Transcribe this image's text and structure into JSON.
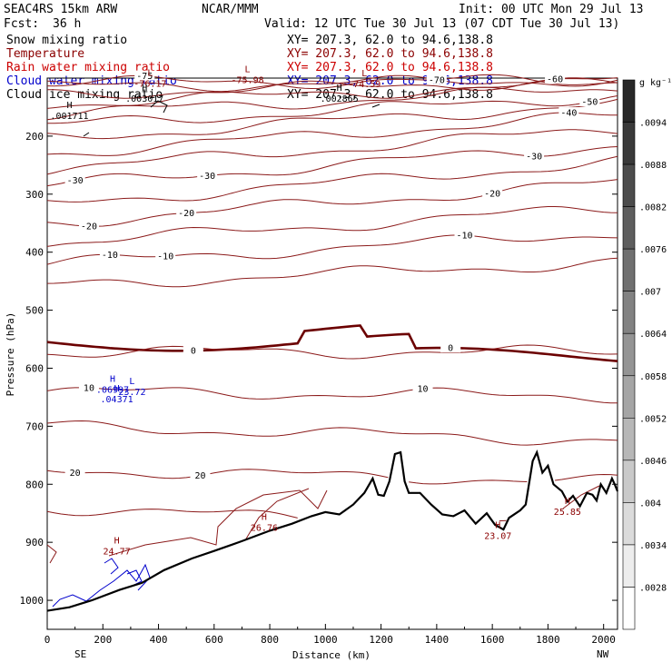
{
  "header": {
    "model": "SEAC4RS 15km ARW",
    "org": "NCAR/MMM",
    "init": "Init: 00 UTC Mon 29 Jul 13",
    "fcst_label": "Fcst:",
    "fcst_value": "36 h",
    "valid": "Valid: 12 UTC Tue 30 Jul 13 (07 CDT Tue 30 Jul 13)"
  },
  "fields": [
    {
      "name": "Snow mixing ratio",
      "xy": "XY= 207.3, 62.0 to  94.6,138.8",
      "color": "#000000"
    },
    {
      "name": "Temperature",
      "xy": "XY= 207.3, 62.0 to  94.6,138.8",
      "color": "#8b0000"
    },
    {
      "name": "Rain water mixing ratio",
      "xy": "XY= 207.3, 62.0 to  94.6,138.8",
      "color": "#cc0000"
    },
    {
      "name": "Cloud water mixing ratio",
      "xy": "XY= 207.3, 62.0 to  94.6,138.8",
      "color": "#0000cc"
    },
    {
      "name": "Cloud ice mixing ratio",
      "xy": "XY= 207.3, 62.0 to  94.6,138.8",
      "color": "#000000"
    }
  ],
  "chart_data": {
    "type": "contour-cross-section",
    "xlabel": "Distance (km)",
    "ylabel": "Pressure (hPa)",
    "xlim": [
      0,
      2050
    ],
    "ylim": [
      1050,
      100
    ],
    "x_ticks": [
      "0",
      "200",
      "400",
      "600",
      "800",
      "1000",
      "1200",
      "1400",
      "1600",
      "1800",
      "2000"
    ],
    "y_ticks": [
      "200",
      "300",
      "400",
      "500",
      "600",
      "700",
      "800",
      "900",
      "1000"
    ],
    "x_end_labels": {
      "left": "SE",
      "right": "NW"
    },
    "temperature_contour_levels": [
      -75,
      -70,
      -65,
      -60,
      -55,
      -50,
      -45,
      -40,
      -35,
      -30,
      -25,
      -20,
      -15,
      -10,
      -5,
      0,
      5,
      10,
      15,
      20,
      25
    ],
    "temperature_labels": [
      "-75",
      "-70",
      "-60",
      "-50",
      "-40",
      "-30",
      "-30",
      "-30",
      "-20",
      "-20",
      "-20",
      "-10",
      "-10",
      "-10",
      "0",
      "0",
      "10",
      "10",
      "20",
      "20"
    ],
    "extrema": [
      {
        "type": "L",
        "value": "-76.17",
        "color": "#8b0000"
      },
      {
        "type": "L",
        "value": "-75.98",
        "color": "#8b0000"
      },
      {
        "type": "L",
        "value": "-74.59",
        "color": "#8b0000"
      },
      {
        "type": "H",
        "value": ".003017",
        "color": "#000000"
      },
      {
        "type": "H",
        "value": ".002865",
        "color": "#000000"
      },
      {
        "type": "H",
        "value": ".001711",
        "color": "#000000"
      },
      {
        "type": "H",
        "value": "26.76",
        "color": "#8b0000"
      },
      {
        "type": "H",
        "value": "24.77",
        "color": "#8b0000"
      },
      {
        "type": "H",
        "value": "23.07",
        "color": "#8b0000"
      },
      {
        "type": "H",
        "value": "25.85",
        "color": "#8b0000"
      },
      {
        "type": "H",
        "value": ".04371",
        "color": "#0000cc"
      },
      {
        "type": "H",
        "value": ".06997",
        "color": "#0000cc"
      },
      {
        "type": "L",
        "value": "23.72",
        "color": "#0000cc"
      }
    ],
    "colorbar": {
      "unit": "g kg⁻¹",
      "labels": [
        ".0094",
        ".0088",
        ".0082",
        ".0076",
        ".007",
        ".0064",
        ".0058",
        ".0052",
        ".0046",
        ".004",
        ".0034",
        ".0028"
      ]
    },
    "grid": false
  }
}
